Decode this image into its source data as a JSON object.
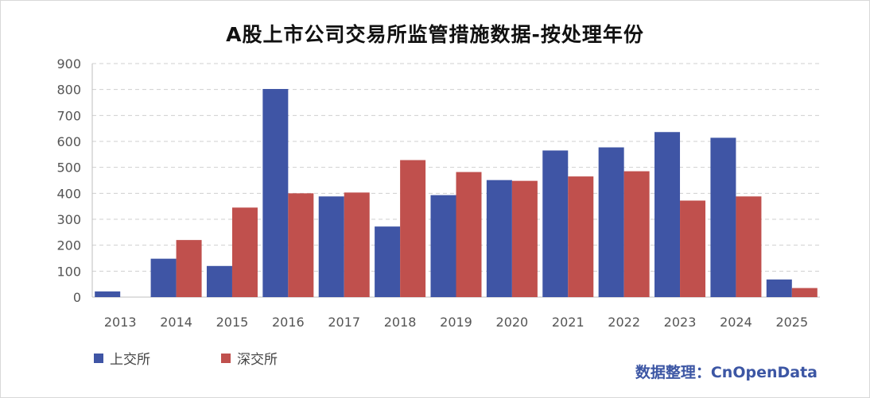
{
  "chart_data": {
    "type": "bar",
    "title": "A股上市公司交易所监管措施数据-按处理年份",
    "categories": [
      "2013",
      "2014",
      "2015",
      "2016",
      "2017",
      "2018",
      "2019",
      "2020",
      "2021",
      "2022",
      "2023",
      "2024",
      "2025"
    ],
    "series": [
      {
        "name": "上交所",
        "color": "#3f55a5",
        "values": [
          22,
          148,
          120,
          802,
          388,
          272,
          393,
          451,
          565,
          577,
          636,
          614,
          68
        ]
      },
      {
        "name": "深交所",
        "color": "#c0504d",
        "values": [
          0,
          220,
          345,
          400,
          403,
          528,
          482,
          448,
          465,
          485,
          372,
          388,
          35
        ]
      }
    ],
    "ylim": [
      0,
      900
    ],
    "yticks": [
      0,
      100,
      200,
      300,
      400,
      500,
      600,
      700,
      800,
      900
    ],
    "grid": true,
    "legend": "bottom-left"
  },
  "credit": "数据整理：CnOpenData"
}
